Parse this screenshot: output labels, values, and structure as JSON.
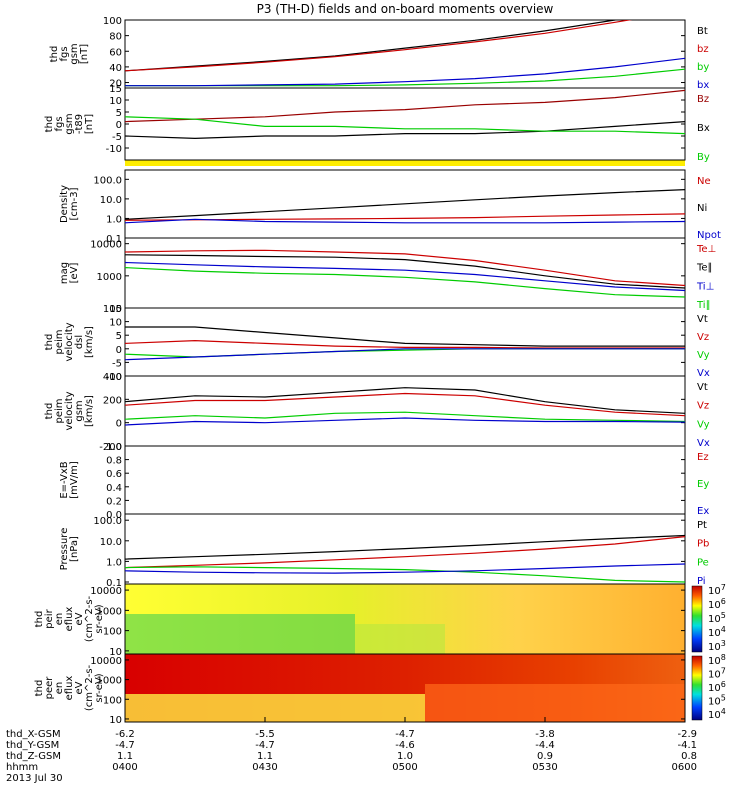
{
  "title": "P3 (TH-D) fields and on-board moments overview",
  "chart_data": [
    {
      "type": "line",
      "panel": "fgs_gsm",
      "ylabel_lines": [
        "thd",
        "fgs",
        "gsm",
        "[nT]"
      ],
      "ylim": [
        13,
        100
      ],
      "yticks": [
        20,
        40,
        60,
        80,
        100
      ],
      "x": [
        0,
        15,
        30,
        45,
        60,
        75,
        90,
        105,
        120
      ],
      "series": [
        {
          "name": "Bt",
          "color": "#000000",
          "values": [
            35,
            41,
            47,
            54,
            64,
            74,
            86,
            100,
            115
          ]
        },
        {
          "name": "bz",
          "color": "#cc0000",
          "values": [
            35,
            40,
            46,
            53,
            62,
            72,
            83,
            97,
            112
          ]
        },
        {
          "name": "by",
          "color": "#00cc00",
          "values": [
            16,
            16,
            16,
            16,
            17,
            19,
            22,
            28,
            37
          ]
        },
        {
          "name": "bx",
          "color": "#0000cc",
          "values": [
            16,
            16,
            17,
            18,
            21,
            25,
            31,
            40,
            51
          ]
        }
      ]
    },
    {
      "type": "line",
      "panel": "fgs_gsm_minus_t89",
      "ylabel_lines": [
        "thd",
        "fgs",
        "gsm",
        "-t89",
        "[nT]"
      ],
      "ylim": [
        -15,
        15
      ],
      "yticks": [
        -10,
        -5,
        0,
        5,
        10,
        15
      ],
      "x": [
        0,
        15,
        30,
        45,
        60,
        75,
        90,
        105,
        120
      ],
      "series": [
        {
          "name": "Bz",
          "color": "#990000",
          "values": [
            1,
            2,
            3,
            5,
            6,
            8,
            9,
            11,
            14
          ]
        },
        {
          "name": "Bx",
          "color": "#000000",
          "values": [
            -5,
            -6,
            -5,
            -5,
            -4,
            -4,
            -3,
            -1,
            1
          ]
        },
        {
          "name": "By",
          "color": "#00cc00",
          "values": [
            3,
            2,
            -1,
            -1,
            -2,
            -2,
            -3,
            -3,
            -4
          ]
        }
      ]
    },
    {
      "type": "line",
      "panel": "density",
      "ylabel_lines": [
        "Density",
        "[cm-3]"
      ],
      "yscale": "log",
      "ylim": [
        0.1,
        300
      ],
      "yticks": [
        0.1,
        1.0,
        10.0,
        100.0
      ],
      "ytick_labels": [
        "0.1",
        "1.0",
        "10.0",
        "100.0"
      ],
      "x": [
        0,
        15,
        30,
        45,
        60,
        75,
        90,
        105,
        120
      ],
      "series": [
        {
          "name": "Ne",
          "color": "#cc0000",
          "values": [
            0.8,
            0.85,
            0.9,
            0.95,
            1.0,
            1.1,
            1.3,
            1.5,
            1.7
          ]
        },
        {
          "name": "Ni",
          "color": "#000000",
          "values": [
            0.9,
            1.4,
            2.2,
            3.5,
            5.6,
            9,
            14,
            21,
            30
          ]
        },
        {
          "name": "Npot",
          "color": "#0000cc",
          "values": [
            0.6,
            0.9,
            0.7,
            0.65,
            0.6,
            0.6,
            0.6,
            0.65,
            0.7
          ]
        }
      ]
    },
    {
      "type": "line",
      "panel": "mom_temp",
      "ylabel_lines": [
        "mag",
        "[eV]"
      ],
      "yscale": "log",
      "ylim": [
        100,
        15000
      ],
      "yticks": [
        100,
        1000,
        10000
      ],
      "ytick_labels": [
        "100",
        "1000",
        "10000"
      ],
      "x": [
        0,
        15,
        30,
        45,
        60,
        75,
        90,
        105,
        120
      ],
      "series": [
        {
          "name": "Te⊥",
          "color": "#cc0000",
          "values": [
            5500,
            6000,
            6200,
            5500,
            4800,
            3000,
            1500,
            700,
            500
          ]
        },
        {
          "name": "Te∥",
          "color": "#000000",
          "values": [
            4500,
            4300,
            4000,
            3800,
            3200,
            2000,
            1000,
            550,
            420
          ]
        },
        {
          "name": "Ti⊥",
          "color": "#0000cc",
          "values": [
            2600,
            2200,
            1900,
            1700,
            1500,
            1100,
            700,
            450,
            350
          ]
        },
        {
          "name": "Ti∥",
          "color": "#00cc00",
          "values": [
            1800,
            1400,
            1200,
            1100,
            900,
            650,
            400,
            260,
            220
          ]
        }
      ]
    },
    {
      "type": "line",
      "panel": "peim_velocity_dsl",
      "ylabel_lines": [
        "thd",
        "peim",
        "velocity",
        "dsl",
        "[km/s]"
      ],
      "ylim": [
        -10,
        15
      ],
      "yticks": [
        -10,
        -5,
        0,
        5,
        10,
        15
      ],
      "x": [
        0,
        15,
        30,
        45,
        60,
        75,
        90,
        105,
        120
      ],
      "series": [
        {
          "name": "Vt",
          "color": "#000000",
          "values": [
            8,
            8,
            6,
            4,
            2,
            1.5,
            1,
            1,
            1
          ]
        },
        {
          "name": "Vz",
          "color": "#cc0000",
          "values": [
            2,
            3,
            2,
            1,
            0.5,
            0.5,
            0.3,
            0.3,
            0.3
          ]
        },
        {
          "name": "Vy",
          "color": "#00cc00",
          "values": [
            -2,
            -3,
            -2,
            -1,
            -0.5,
            0,
            0,
            0,
            0
          ]
        },
        {
          "name": "Vx",
          "color": "#0000cc",
          "values": [
            -4,
            -3,
            -2,
            -1,
            0,
            0,
            0,
            0,
            0
          ]
        }
      ]
    },
    {
      "type": "line",
      "panel": "peim_velocity_gsm",
      "ylabel_lines": [
        "thd",
        "peim",
        "velocity",
        "gsm",
        "[km/s]"
      ],
      "ylim": [
        -200,
        400
      ],
      "yticks": [
        -200,
        0,
        200,
        400
      ],
      "x": [
        0,
        15,
        30,
        45,
        60,
        75,
        90,
        105,
        120
      ],
      "series": [
        {
          "name": "Vt",
          "color": "#000000",
          "values": [
            180,
            230,
            220,
            260,
            300,
            280,
            180,
            110,
            80
          ]
        },
        {
          "name": "Vz",
          "color": "#cc0000",
          "values": [
            150,
            190,
            190,
            220,
            250,
            230,
            150,
            90,
            60
          ]
        },
        {
          "name": "Vy",
          "color": "#00cc00",
          "values": [
            30,
            60,
            40,
            80,
            90,
            60,
            30,
            20,
            10
          ]
        },
        {
          "name": "Vx",
          "color": "#0000cc",
          "values": [
            -20,
            10,
            0,
            20,
            40,
            20,
            10,
            10,
            5
          ]
        }
      ]
    },
    {
      "type": "line",
      "panel": "e_vxb",
      "ylabel_lines": [
        "E=-VxB",
        "[mV/m]"
      ],
      "ylim": [
        0,
        1
      ],
      "yticks": [
        0,
        0.2,
        0.4,
        0.6,
        0.8,
        1.0
      ],
      "ytick_labels": [
        "0.0",
        "0.2",
        "0.4",
        "0.6",
        "0.8",
        "1.0"
      ],
      "x": [],
      "series": [
        {
          "name": "Ez",
          "color": "#cc0000",
          "values": []
        },
        {
          "name": "Ey",
          "color": "#00cc00",
          "values": []
        },
        {
          "name": "Ex",
          "color": "#0000cc",
          "values": []
        }
      ]
    },
    {
      "type": "line",
      "panel": "pressure",
      "ylabel_lines": [
        "Pressure",
        "[nPa]"
      ],
      "yscale": "log",
      "ylim": [
        0.08,
        200
      ],
      "yticks": [
        0.1,
        1.0,
        10.0,
        100.0
      ],
      "ytick_labels": [
        "0.1",
        "1.0",
        "10.0",
        "100.0"
      ],
      "x": [
        0,
        15,
        30,
        45,
        60,
        75,
        90,
        105,
        120
      ],
      "series": [
        {
          "name": "Pt",
          "color": "#000000",
          "values": [
            1.3,
            1.7,
            2.2,
            3.0,
            4.2,
            6,
            9,
            13,
            18
          ]
        },
        {
          "name": "Pb",
          "color": "#cc0000",
          "values": [
            0.5,
            0.65,
            0.85,
            1.2,
            1.7,
            2.5,
            4,
            7,
            16
          ]
        },
        {
          "name": "Pe",
          "color": "#00cc00",
          "values": [
            0.5,
            0.55,
            0.5,
            0.45,
            0.4,
            0.3,
            0.2,
            0.12,
            0.1
          ]
        },
        {
          "name": "Pi",
          "color": "#0000cc",
          "values": [
            0.35,
            0.3,
            0.28,
            0.27,
            0.3,
            0.35,
            0.45,
            0.6,
            0.75
          ]
        }
      ]
    },
    {
      "type": "heatmap",
      "panel": "peir_en_eflux",
      "ylabel_lines": [
        "thd",
        "peir",
        "en",
        "eflux",
        "eV",
        "(cm^2-s-",
        "sr-eV)"
      ],
      "yscale": "log",
      "ylim": [
        7,
        20000
      ],
      "yticks": [
        10,
        100,
        1000,
        10000
      ],
      "ytick_labels": [
        "10",
        "100",
        "1000",
        "10000"
      ],
      "colorbar_ticks": [
        "10^3",
        "10^4",
        "10^5",
        "10^6",
        "10^7"
      ]
    },
    {
      "type": "heatmap",
      "panel": "peer_en_eflux",
      "ylabel_lines": [
        "thd",
        "peer",
        "en",
        "eflux",
        "eV",
        "(cm^2-s-",
        "sr-eV)"
      ],
      "yscale": "log",
      "ylim": [
        7,
        20000
      ],
      "yticks": [
        10,
        100,
        1000,
        10000
      ],
      "ytick_labels": [
        "10",
        "100",
        "1000",
        "10000"
      ],
      "colorbar_ticks": [
        "10^4",
        "10^5",
        "10^6",
        "10^7",
        "10^8"
      ]
    }
  ],
  "x_axis": {
    "labels": [
      "thd_X-GSM",
      "thd_Y-GSM",
      "thd_Z-GSM",
      "hhmm",
      "2013 Jul 30"
    ],
    "ticks": [
      {
        "X": "-6.2",
        "Y": "-4.7",
        "Z": "1.1",
        "hhmm": "0400"
      },
      {
        "X": "-5.5",
        "Y": "-4.7",
        "Z": "1.1",
        "hhmm": "0430"
      },
      {
        "X": "-4.7",
        "Y": "-4.6",
        "Z": "1.0",
        "hhmm": "0500"
      },
      {
        "X": "-3.8",
        "Y": "-4.4",
        "Z": "0.9",
        "hhmm": "0530"
      },
      {
        "X": "-2.9",
        "Y": "-4.1",
        "Z": "0.8",
        "hhmm": "0600"
      }
    ]
  }
}
